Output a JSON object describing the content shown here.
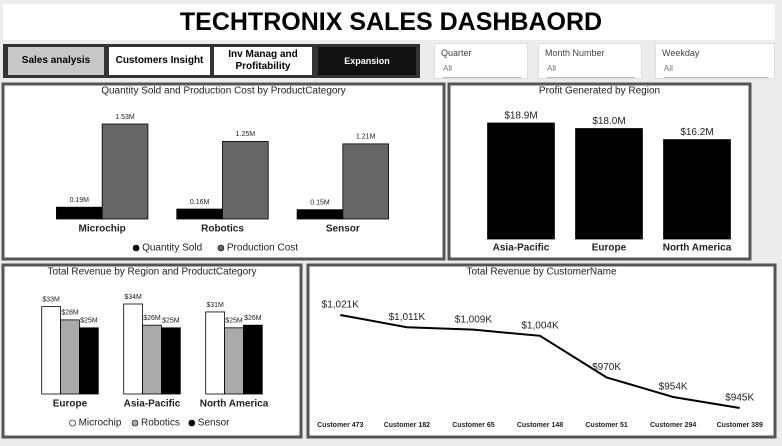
{
  "header": {
    "title": "TECHTRONIX SALES DASHBAORD"
  },
  "buttons": [
    "Sales analysis",
    "Customers Insight",
    "Inv Manag and Profitability",
    "Expansion"
  ],
  "filters": [
    {
      "label": "Quarter",
      "value": "All"
    },
    {
      "label": "Month Number",
      "value": "All"
    },
    {
      "label": "Weekday",
      "value": "All"
    }
  ],
  "chart_data": [
    {
      "type": "bar",
      "title": "Quantity Sold and Production Cost by ProductCategory",
      "categories": [
        "Microchip",
        "Robotics",
        "Sensor"
      ],
      "series": [
        {
          "name": "Quantity Sold",
          "color": "#000000",
          "values": [
            0.19,
            0.16,
            0.15
          ],
          "value_labels": [
            "0.19M",
            "0.16M",
            "0.15M"
          ]
        },
        {
          "name": "Production Cost",
          "color": "#666666",
          "values": [
            1.53,
            1.25,
            1.21
          ],
          "value_labels": [
            "1.53M",
            "1.25M",
            "1.21M"
          ]
        }
      ]
    },
    {
      "type": "bar",
      "title": "Profit Generated by Region",
      "categories": [
        "Asia-Pacific",
        "Europe",
        "North America"
      ],
      "color": "#000000",
      "values": [
        18.9,
        18.0,
        16.2
      ],
      "value_labels": [
        "$18.9M",
        "$18.0M",
        "$16.2M"
      ]
    },
    {
      "type": "bar",
      "title": "Total Revenue by Region and ProductCategory",
      "categories": [
        "Europe",
        "Asia-Pacific",
        "North America"
      ],
      "series": [
        {
          "name": "Microchip",
          "color": "#ffffff",
          "values": [
            33,
            34,
            31
          ],
          "value_labels": [
            "$33M",
            "$34M",
            "$31M"
          ]
        },
        {
          "name": "Robotics",
          "color": "#aaaaaa",
          "values": [
            28,
            26,
            25
          ],
          "value_labels": [
            "$28M",
            "$26M",
            "$25M"
          ]
        },
        {
          "name": "Sensor",
          "color": "#000000",
          "values": [
            25,
            25,
            26
          ],
          "value_labels": [
            "$25M",
            "$25M",
            "$26M"
          ]
        }
      ]
    },
    {
      "type": "line",
      "title": "Total Revenue by CustomerName",
      "color": "#000000",
      "categories": [
        "Customer 473",
        "Customer 182",
        "Customer 65",
        "Customer 148",
        "Customer 51",
        "Customer 294",
        "Customer 389"
      ],
      "values": [
        1021,
        1011,
        1009,
        1004,
        970,
        954,
        945
      ],
      "value_labels": [
        "$1,021K",
        "$1,011K",
        "$1,009K",
        "$1,004K",
        "$970K",
        "$954K",
        "$945K"
      ]
    }
  ]
}
